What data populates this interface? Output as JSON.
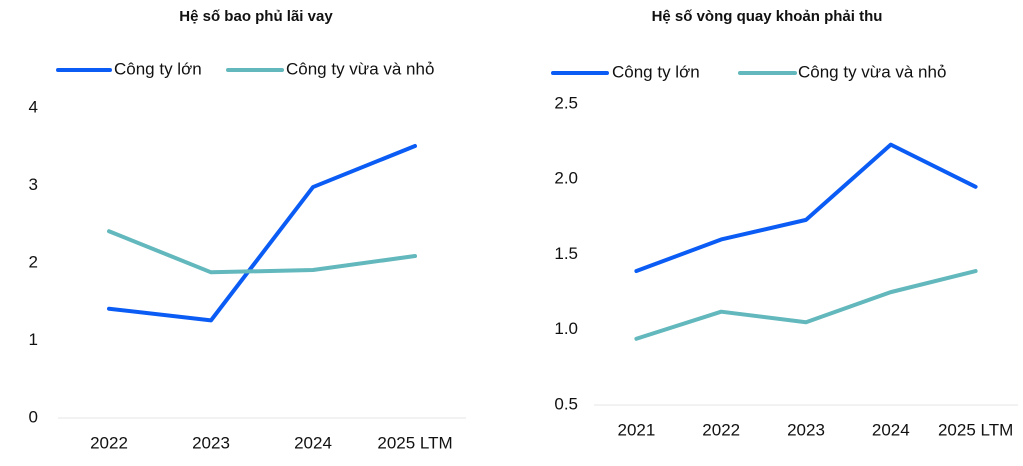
{
  "chart_data": [
    {
      "type": "line",
      "title": "Hệ số bao phủ lãi vay",
      "categories": [
        "2022",
        "2023",
        "2024",
        "2025 LTM"
      ],
      "series": [
        {
          "name": "Công ty lớn",
          "color": "#0b5cf5",
          "values": [
            1.41,
            1.26,
            2.98,
            3.51
          ]
        },
        {
          "name": "Công ty vừa và nhỏ",
          "color": "#62b8bc",
          "values": [
            2.41,
            1.88,
            1.91,
            2.09
          ]
        }
      ],
      "ylim": [
        0,
        4
      ],
      "yticks": [
        0,
        1,
        2,
        3,
        4
      ],
      "grid": false,
      "legend": "top"
    },
    {
      "type": "line",
      "title": "Hệ số vòng quay khoản phải thu",
      "categories": [
        "2021",
        "2022",
        "2023",
        "2024",
        "2025 LTM"
      ],
      "series": [
        {
          "name": "Công ty lớn",
          "color": "#0b5cf5",
          "values": [
            1.39,
            1.6,
            1.73,
            2.23,
            1.95
          ]
        },
        {
          "name": "Công ty vừa và nhỏ",
          "color": "#62b8bc",
          "values": [
            0.94,
            1.12,
            1.05,
            1.25,
            1.39
          ]
        }
      ],
      "ylim": [
        0.5,
        2.5
      ],
      "yticks": [
        {
          "value": 0.5,
          "label": "0.5"
        },
        {
          "value": 1,
          "label": "1.0"
        },
        {
          "value": 1.5,
          "label": "1.5"
        },
        {
          "value": 2,
          "label": "2.0"
        },
        {
          "value": 2.5,
          "label": "2.5"
        }
      ],
      "grid": false,
      "legend": "top"
    }
  ]
}
